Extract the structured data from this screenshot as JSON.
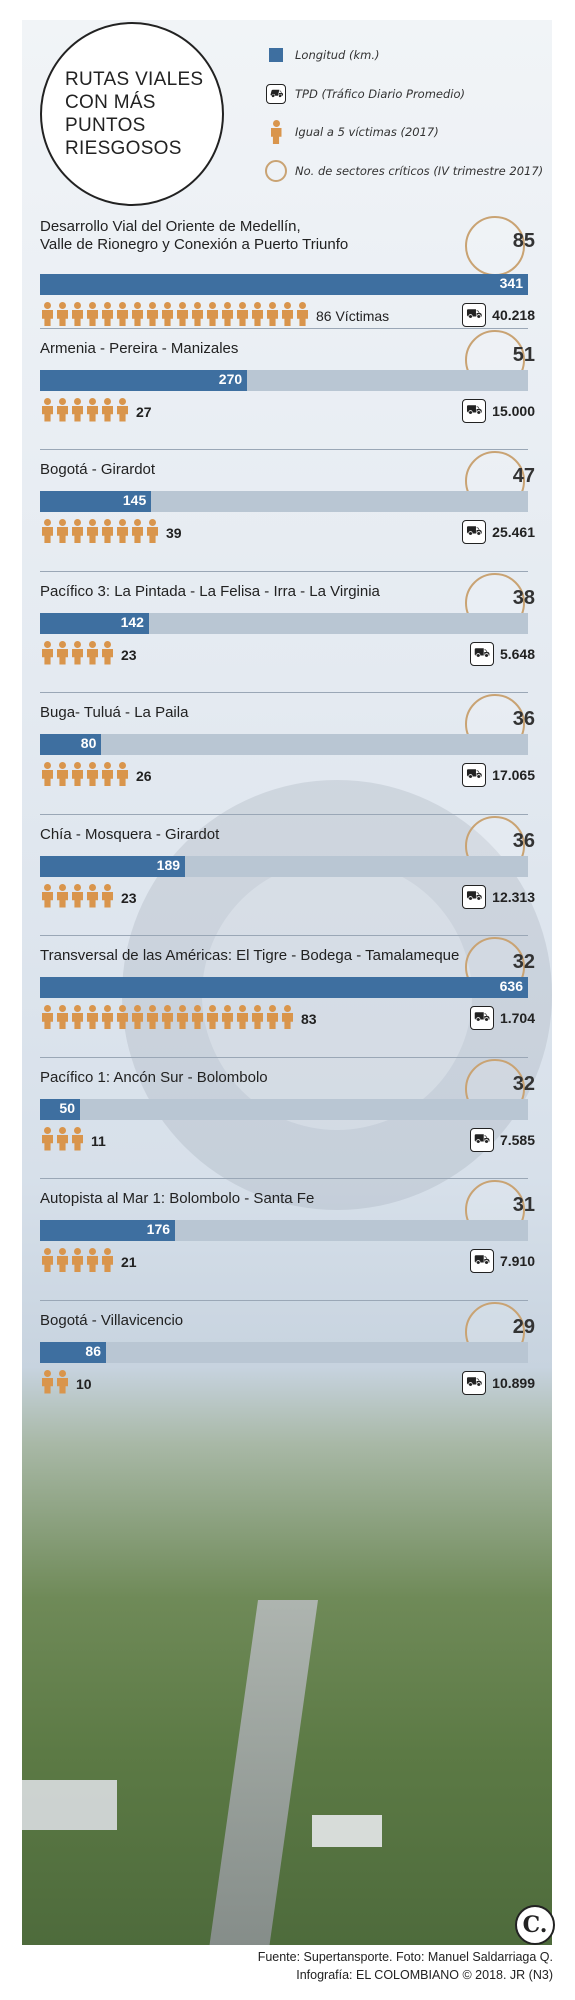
{
  "title": "RUTAS VIALES\nCON MÁS\nPUNTOS\nRIESGOSOS",
  "legend": {
    "length": "Longitud (km.)",
    "tpd": "TPD (Tráfico Diario Promedio)",
    "victims": "Igual a 5 víctimas (2017)",
    "sectors": "No. de sectores críticos (IV trimestre 2017)"
  },
  "chart_data": {
    "type": "bar",
    "title": "RUTAS VIALES CON MÁS PUNTOS RIESGOSOS",
    "categories": [
      "Desarrollo Vial del Oriente de Medellín, Valle de Rionegro y Conexión a Puerto Triunfo",
      "Armenia - Pereira - Manizales",
      "Bogotá - Girardot",
      "Pacífico 3: La Pintada - La Felisa - Irra - La Virginia",
      "Buga- Tuluá - La Paila",
      "Chía - Mosquera - Girardot",
      "Transversal de las Américas: El Tigre - Bodega - Tamalameque",
      "Pacífico 1: Ancón Sur - Bolombolo",
      "Autopista al Mar 1: Bolombolo - Santa Fe",
      "Bogotá - Villavicencio"
    ],
    "series": [
      {
        "name": "Longitud (km.)",
        "values": [
          341,
          270,
          145,
          142,
          80,
          189,
          636,
          50,
          176,
          86
        ]
      },
      {
        "name": "Víctimas (2017)",
        "values": [
          86,
          27,
          39,
          23,
          26,
          23,
          83,
          11,
          21,
          10
        ]
      },
      {
        "name": "TPD (Tráfico Diario Promedio)",
        "values": [
          40218,
          15000,
          25461,
          5648,
          17065,
          12313,
          1704,
          7585,
          7910,
          10899
        ]
      },
      {
        "name": "No. de sectores críticos (IV trimestre 2017)",
        "values": [
          85,
          51,
          47,
          38,
          36,
          36,
          32,
          32,
          31,
          29
        ]
      }
    ],
    "victims_per_icon": 5,
    "colors": {
      "bar": "#3e6fa0",
      "bar_bg": "#b9c6d3",
      "person": "#d9954c",
      "ring": "#c9a373"
    }
  },
  "routes": [
    {
      "name": "Desarrollo Vial del Oriente de Medellín,\nValle de Rionegro y Conexión a Puerto Triunfo",
      "sectors": "85",
      "length": "341",
      "victims": "86 Víctimas",
      "tpd": "40.218"
    },
    {
      "name": "Armenia - Pereira - Manizales",
      "sectors": "51",
      "length": "270",
      "victims": "27",
      "tpd": "15.000"
    },
    {
      "name": "Bogotá - Girardot",
      "sectors": "47",
      "length": "145",
      "victims": "39",
      "tpd": "25.461"
    },
    {
      "name": "Pacífico 3: La Pintada - La Felisa - Irra - La Virginia",
      "sectors": "38",
      "length": "142",
      "victims": "23",
      "tpd": "5.648"
    },
    {
      "name": "Buga- Tuluá - La Paila",
      "sectors": "36",
      "length": "80",
      "victims": "26",
      "tpd": "17.065"
    },
    {
      "name": "Chía - Mosquera - Girardot",
      "sectors": "36",
      "length": "189",
      "victims": "23",
      "tpd": "12.313"
    },
    {
      "name": "Transversal de las Américas: El Tigre - Bodega - Tamalameque",
      "sectors": "32",
      "length": "636",
      "victims": "83",
      "tpd": "1.704"
    },
    {
      "name": "Pacífico 1: Ancón Sur - Bolombolo",
      "sectors": "32",
      "length": "50",
      "victims": "11",
      "tpd": "7.585"
    },
    {
      "name": "Autopista al Mar 1: Bolombolo - Santa Fe",
      "sectors": "31",
      "length": "176",
      "victims": "21",
      "tpd": "7.910"
    },
    {
      "name": "Bogotá - Villavicencio",
      "sectors": "29",
      "length": "86",
      "victims": "10",
      "tpd": "10.899"
    }
  ],
  "footer": {
    "source": "Fuente: Supertansporte. Foto: Manuel Saldarriaga Q.",
    "credit": "Infografía: EL COLOMBIANO © 2018. JR (N3)"
  },
  "logo": "C.",
  "icons": {
    "length": "square-icon",
    "tpd": "car-icon",
    "victims": "person-icon",
    "sectors": "ring-icon"
  }
}
